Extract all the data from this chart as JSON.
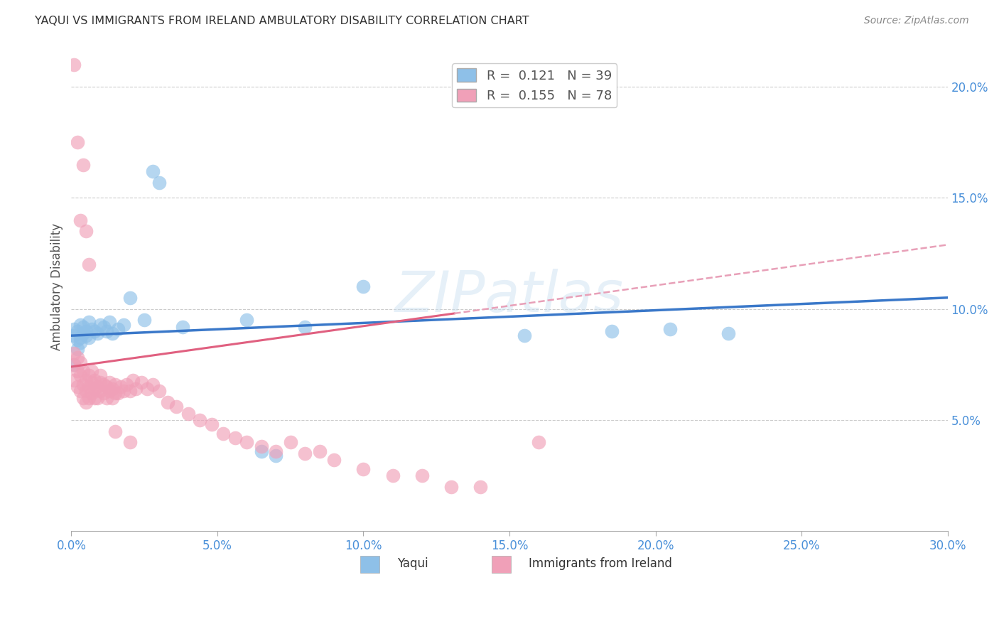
{
  "title": "YAQUI VS IMMIGRANTS FROM IRELAND AMBULATORY DISABILITY CORRELATION CHART",
  "source": "Source: ZipAtlas.com",
  "ylabel": "Ambulatory Disability",
  "series1_name": "Yaqui",
  "series2_name": "Immigrants from Ireland",
  "series1_color": "#8ec0e8",
  "series2_color": "#f0a0b8",
  "series1_line_color": "#3a78c9",
  "series2_line_color": "#e06080",
  "series2_dash_color": "#e8a0b8",
  "watermark": "ZIPatlas",
  "grid_color": "#cccccc",
  "axis_color": "#4a90d9",
  "R1": 0.121,
  "N1": 39,
  "R2": 0.155,
  "N2": 78,
  "xmin": 0.0,
  "xmax": 0.3,
  "ymin": 0.0,
  "ymax": 0.22,
  "yaqui_x": [
    0.001,
    0.001,
    0.002,
    0.002,
    0.003,
    0.003,
    0.004,
    0.004,
    0.005,
    0.005,
    0.006,
    0.006,
    0.007,
    0.008,
    0.009,
    0.01,
    0.011,
    0.012,
    0.013,
    0.014,
    0.016,
    0.018,
    0.02,
    0.025,
    0.028,
    0.03,
    0.038,
    0.06,
    0.065,
    0.07,
    0.08,
    0.1,
    0.155,
    0.185,
    0.205,
    0.225,
    0.001,
    0.002,
    0.003
  ],
  "yaqui_y": [
    0.088,
    0.091,
    0.086,
    0.09,
    0.087,
    0.093,
    0.089,
    0.092,
    0.09,
    0.088,
    0.094,
    0.087,
    0.091,
    0.09,
    0.089,
    0.093,
    0.092,
    0.09,
    0.094,
    0.089,
    0.091,
    0.093,
    0.105,
    0.095,
    0.162,
    0.157,
    0.092,
    0.095,
    0.036,
    0.034,
    0.092,
    0.11,
    0.088,
    0.09,
    0.091,
    0.089,
    0.075,
    0.082,
    0.085
  ],
  "ireland_x": [
    0.001,
    0.001,
    0.001,
    0.002,
    0.002,
    0.002,
    0.003,
    0.003,
    0.003,
    0.004,
    0.004,
    0.004,
    0.005,
    0.005,
    0.005,
    0.006,
    0.006,
    0.006,
    0.007,
    0.007,
    0.007,
    0.008,
    0.008,
    0.008,
    0.009,
    0.009,
    0.01,
    0.01,
    0.01,
    0.011,
    0.011,
    0.012,
    0.012,
    0.013,
    0.013,
    0.014,
    0.014,
    0.015,
    0.015,
    0.016,
    0.017,
    0.018,
    0.019,
    0.02,
    0.021,
    0.022,
    0.024,
    0.026,
    0.028,
    0.03,
    0.033,
    0.036,
    0.04,
    0.044,
    0.048,
    0.052,
    0.056,
    0.06,
    0.065,
    0.07,
    0.075,
    0.08,
    0.085,
    0.09,
    0.1,
    0.11,
    0.12,
    0.13,
    0.14,
    0.16,
    0.001,
    0.002,
    0.003,
    0.004,
    0.005,
    0.006,
    0.015,
    0.02
  ],
  "ireland_y": [
    0.075,
    0.068,
    0.08,
    0.072,
    0.065,
    0.078,
    0.07,
    0.063,
    0.076,
    0.066,
    0.06,
    0.072,
    0.063,
    0.068,
    0.058,
    0.065,
    0.06,
    0.07,
    0.062,
    0.067,
    0.072,
    0.06,
    0.064,
    0.068,
    0.06,
    0.065,
    0.063,
    0.067,
    0.07,
    0.062,
    0.066,
    0.06,
    0.065,
    0.063,
    0.067,
    0.06,
    0.064,
    0.062,
    0.066,
    0.062,
    0.065,
    0.063,
    0.066,
    0.063,
    0.068,
    0.064,
    0.067,
    0.064,
    0.066,
    0.063,
    0.058,
    0.056,
    0.053,
    0.05,
    0.048,
    0.044,
    0.042,
    0.04,
    0.038,
    0.036,
    0.04,
    0.035,
    0.036,
    0.032,
    0.028,
    0.025,
    0.025,
    0.02,
    0.02,
    0.04,
    0.21,
    0.175,
    0.14,
    0.165,
    0.135,
    0.12,
    0.045,
    0.04
  ]
}
